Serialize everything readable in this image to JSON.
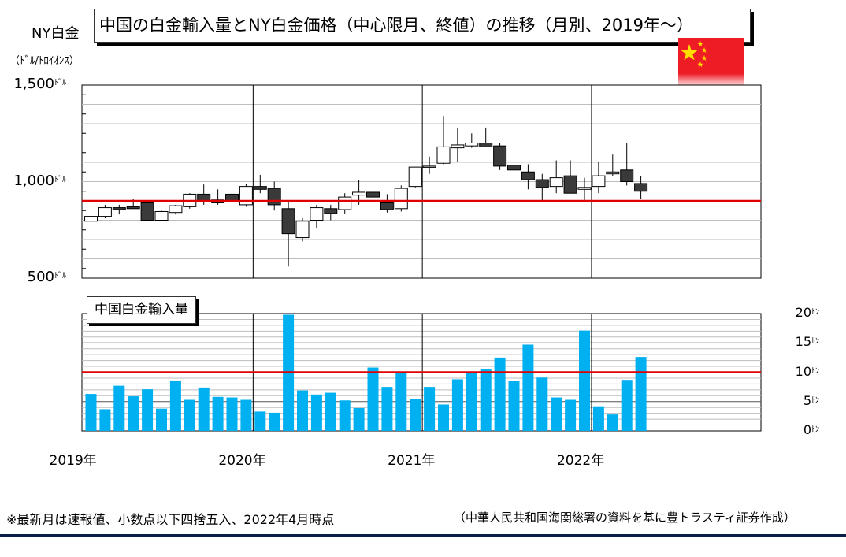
{
  "header": {
    "title": "中国の白金輸入量とNY白金価格（中心限月、終値）の推移（月別、2019年～）",
    "left_label": "NY白金",
    "unit_label": "（ﾄﾞﾙ/ﾄﾛｲｵﾝｽ）"
  },
  "volume_title": "中国白金輸入量",
  "flag": {
    "name": "china-flag-icon",
    "colors": {
      "red": "#ee1c25",
      "star": "#ffde00"
    }
  },
  "footnote": {
    "left": "※最新月は速報値、小数点以下四捨五入、2022年4月時点",
    "right": "（中華人民共和国海関総署の資料を基に豊トラスティ証券作成）"
  },
  "chart_data": [
    {
      "type": "candlestick",
      "title": "",
      "ylabel": "NY白金（ﾄﾞﾙ/ﾄﾛｲｵﾝｽ）",
      "ylim": [
        500,
        1500
      ],
      "y_ticks": [
        {
          "value": 1500,
          "label": "1,500",
          "unit": "ﾄﾞﾙ"
        },
        {
          "value": 1000,
          "label": "1,000",
          "unit": "ﾄﾞﾙ"
        },
        {
          "value": 500,
          "label": "500",
          "unit": "ﾄﾞﾙ"
        }
      ],
      "x_labels": [
        "2019年",
        "2020年",
        "2021年",
        "2022年"
      ],
      "months": [
        "2019-01",
        "2019-02",
        "2019-03",
        "2019-04",
        "2019-05",
        "2019-06",
        "2019-07",
        "2019-08",
        "2019-09",
        "2019-10",
        "2019-11",
        "2019-12",
        "2020-01",
        "2020-02",
        "2020-03",
        "2020-04",
        "2020-05",
        "2020-06",
        "2020-07",
        "2020-08",
        "2020-09",
        "2020-10",
        "2020-11",
        "2020-12",
        "2021-01",
        "2021-02",
        "2021-03",
        "2021-04",
        "2021-05",
        "2021-06",
        "2021-07",
        "2021-08",
        "2021-09",
        "2021-10",
        "2021-11",
        "2021-12",
        "2022-01",
        "2022-02",
        "2022-03",
        "2022-04"
      ],
      "ohlc": [
        [
          795,
          830,
          775,
          820
        ],
        [
          820,
          880,
          810,
          865
        ],
        [
          865,
          880,
          830,
          855
        ],
        [
          870,
          910,
          860,
          860
        ],
        [
          890,
          895,
          795,
          800
        ],
        [
          800,
          850,
          795,
          845
        ],
        [
          840,
          880,
          830,
          875
        ],
        [
          870,
          940,
          860,
          935
        ],
        [
          935,
          985,
          880,
          895
        ],
        [
          890,
          960,
          880,
          905
        ],
        [
          935,
          950,
          880,
          895
        ],
        [
          880,
          990,
          870,
          975
        ],
        [
          975,
          1035,
          940,
          960
        ],
        [
          965,
          1000,
          850,
          880
        ],
        [
          860,
          900,
          560,
          730
        ],
        [
          710,
          810,
          690,
          795
        ],
        [
          800,
          880,
          760,
          865
        ],
        [
          860,
          880,
          800,
          835
        ],
        [
          855,
          940,
          835,
          920
        ],
        [
          930,
          1010,
          880,
          945
        ],
        [
          945,
          955,
          840,
          920
        ],
        [
          890,
          935,
          840,
          855
        ],
        [
          860,
          980,
          845,
          965
        ],
        [
          975,
          1075,
          970,
          1075
        ],
        [
          1075,
          1130,
          1040,
          1080
        ],
        [
          1095,
          1340,
          1090,
          1180
        ],
        [
          1175,
          1280,
          1100,
          1190
        ],
        [
          1185,
          1250,
          1175,
          1200
        ],
        [
          1200,
          1280,
          1180,
          1180
        ],
        [
          1185,
          1200,
          1060,
          1080
        ],
        [
          1085,
          1180,
          1040,
          1060
        ],
        [
          1050,
          1090,
          960,
          1010
        ],
        [
          1010,
          1040,
          900,
          970
        ],
        [
          975,
          1110,
          940,
          1020
        ],
        [
          1030,
          1110,
          940,
          940
        ],
        [
          960,
          1020,
          900,
          970
        ],
        [
          975,
          1100,
          940,
          1030
        ],
        [
          1040,
          1140,
          1030,
          1050
        ],
        [
          1060,
          1200,
          980,
          1000
        ],
        [
          990,
          1030,
          910,
          950
        ]
      ],
      "reference_line": 900,
      "colors": {
        "up": "#ffffff",
        "down": "#3a3a3a",
        "wick": "#000000",
        "reference": "#e00000",
        "grid": "#bdbdbd",
        "year_divider": "#000000"
      },
      "grid": true
    },
    {
      "type": "bar",
      "title": "中国白金輸入量",
      "ylim": [
        0,
        20
      ],
      "y_ticks": [
        {
          "value": 20,
          "label": "20",
          "unit": "ﾄﾝ"
        },
        {
          "value": 15,
          "label": "15",
          "unit": "ﾄﾝ"
        },
        {
          "value": 10,
          "label": "10",
          "unit": "ﾄﾝ"
        },
        {
          "value": 5,
          "label": "5",
          "unit": "ﾄﾝ"
        },
        {
          "value": 0,
          "label": "0",
          "unit": "ﾄﾝ"
        }
      ],
      "months": [
        "2019-01",
        "2019-02",
        "2019-03",
        "2019-04",
        "2019-05",
        "2019-06",
        "2019-07",
        "2019-08",
        "2019-09",
        "2019-10",
        "2019-11",
        "2019-12",
        "2020-01",
        "2020-02",
        "2020-03",
        "2020-04",
        "2020-05",
        "2020-06",
        "2020-07",
        "2020-08",
        "2020-09",
        "2020-10",
        "2020-11",
        "2020-12",
        "2021-01",
        "2021-02",
        "2021-03",
        "2021-04",
        "2021-05",
        "2021-06",
        "2021-07",
        "2021-08",
        "2021-09",
        "2021-10",
        "2021-11",
        "2021-12",
        "2022-01",
        "2022-02",
        "2022-03",
        "2022-04"
      ],
      "values": [
        6.3,
        3.7,
        7.7,
        5.9,
        7.1,
        3.8,
        8.6,
        5.3,
        7.4,
        5.8,
        5.7,
        5.3,
        3.3,
        3.1,
        19.8,
        6.9,
        6.2,
        6.5,
        5.2,
        3.9,
        10.8,
        7.5,
        10.1,
        5.5,
        7.5,
        4.5,
        8.8,
        9.9,
        10.5,
        12.5,
        8.5,
        14.7,
        9.1,
        5.7,
        5.3,
        17.1,
        4.2,
        2.8,
        8.7,
        12.6
      ],
      "reference_line": 10,
      "colors": {
        "bar": "#00b0f0",
        "reference": "#e00000",
        "grid": "#bdbdbd"
      },
      "grid": true
    }
  ]
}
